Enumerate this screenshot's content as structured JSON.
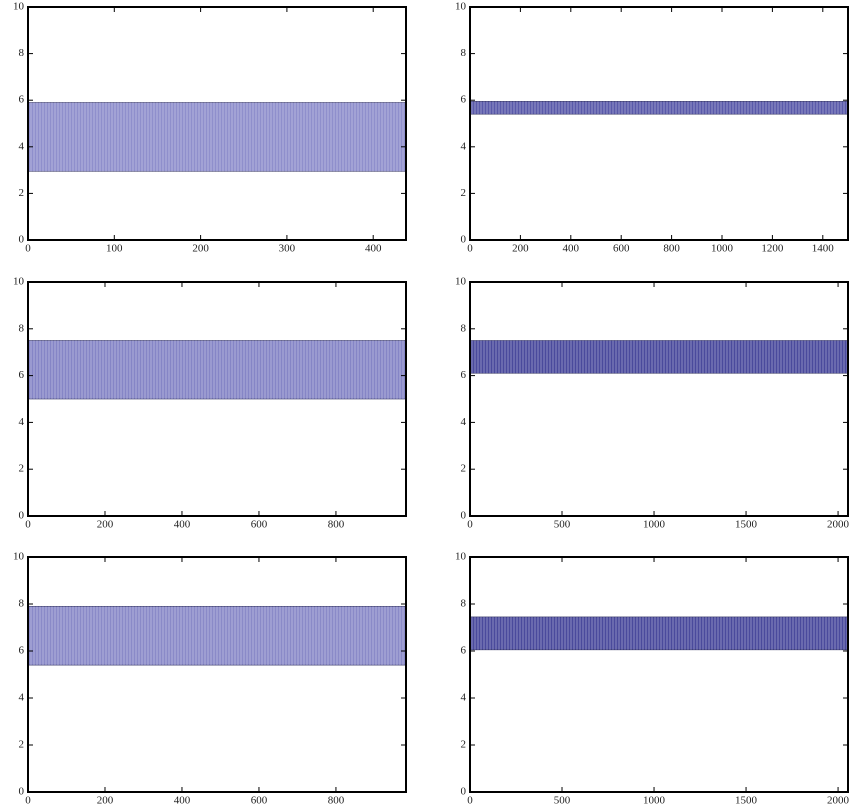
{
  "chart_data": [
    {
      "type": "band",
      "low": 2.95,
      "high": 5.9,
      "color": "#8f8fcc",
      "xlim": [
        0,
        438
      ],
      "xticks": [
        0,
        100,
        200,
        300,
        400
      ],
      "ylim": [
        0,
        10
      ],
      "yticks": [
        0,
        2,
        4,
        6,
        8,
        10
      ]
    },
    {
      "type": "band",
      "low": 5.4,
      "high": 5.95,
      "color": "#5a5aaa",
      "xlim": [
        0,
        1500
      ],
      "xticks": [
        0,
        200,
        400,
        600,
        800,
        1000,
        1200,
        1400
      ],
      "ylim": [
        0,
        10
      ],
      "yticks": [
        0,
        2,
        4,
        6,
        8,
        10
      ]
    },
    {
      "type": "band",
      "low": 5.0,
      "high": 7.5,
      "color": "#8585c6",
      "xlim": [
        0,
        982
      ],
      "xticks": [
        0,
        200,
        400,
        600,
        800
      ],
      "ylim": [
        0,
        10
      ],
      "yticks": [
        0,
        2,
        4,
        6,
        8,
        10
      ]
    },
    {
      "type": "band",
      "low": 6.1,
      "high": 7.5,
      "color": "#4a4a9c",
      "xlim": [
        0,
        2054
      ],
      "xticks": [
        0,
        500,
        1000,
        1500,
        2000
      ],
      "ylim": [
        0,
        10
      ],
      "yticks": [
        0,
        2,
        4,
        6,
        8,
        10
      ]
    },
    {
      "type": "band",
      "low": 5.4,
      "high": 7.9,
      "color": "#8a8ac8",
      "xlim": [
        0,
        982
      ],
      "xticks": [
        0,
        200,
        400,
        600,
        800
      ],
      "ylim": [
        0,
        10
      ],
      "yticks": [
        0,
        2,
        4,
        6,
        8,
        10
      ]
    },
    {
      "type": "band",
      "low": 6.05,
      "high": 7.45,
      "color": "#4a4a9c",
      "xlim": [
        0,
        2054
      ],
      "xticks": [
        0,
        500,
        1000,
        1500,
        2000
      ],
      "ylim": [
        0,
        10
      ],
      "yticks": [
        0,
        2,
        4,
        6,
        8,
        10
      ]
    }
  ]
}
